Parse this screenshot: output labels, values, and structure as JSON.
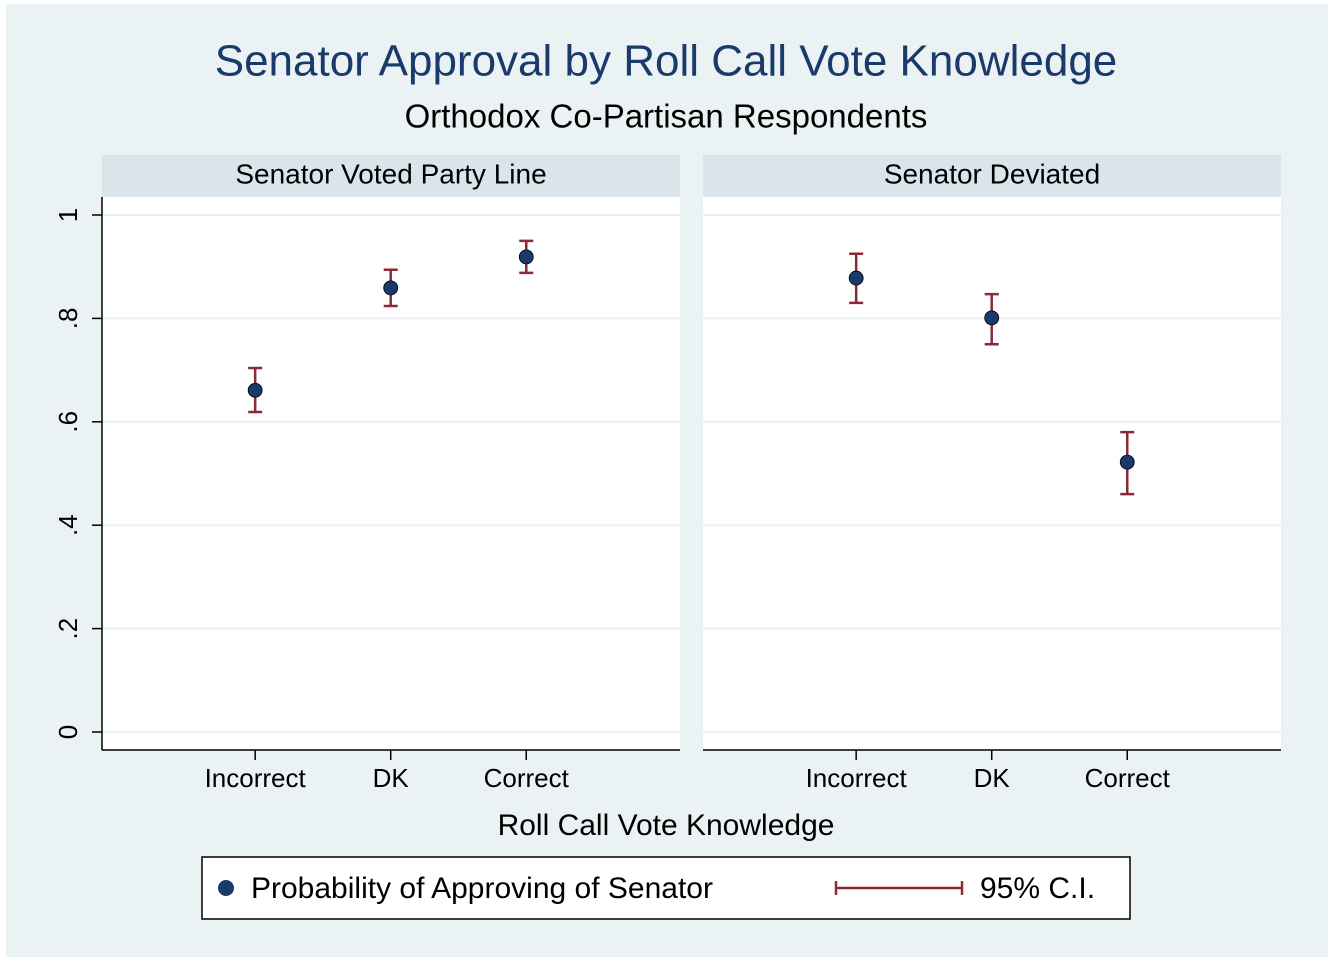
{
  "chart_data": {
    "type": "errorbar",
    "title": "Senator Approval by Roll Call Vote Knowledge",
    "subtitle": "Orthodox Co-Partisan Respondents",
    "xlabel": "Roll Call Vote Knowledge",
    "ylim": [
      0,
      1
    ],
    "yticks": [
      0,
      {
        "value": 0.2,
        "label": ".2"
      },
      {
        "value": 0.4,
        "label": ".4"
      },
      {
        "value": 0.6,
        "label": ".6"
      },
      {
        "value": 0.8,
        "label": ".8"
      },
      1
    ],
    "grid": true,
    "legend": "bottom",
    "series_name": "Probability of Approving of Senator",
    "color": "#1a3a6b",
    "ci_name": "95% C.I.",
    "ci_color": "#8b2a36",
    "panels": [
      {
        "title": "Senator Voted Party Line",
        "categories": [
          "Incorrect",
          "DK",
          "Correct"
        ],
        "values": [
          0.661,
          0.859,
          0.919
        ],
        "ci_low": [
          0.619,
          0.824,
          0.888
        ],
        "ci_high": [
          0.704,
          0.894,
          0.95
        ]
      },
      {
        "title": "Senator Deviated",
        "categories": [
          "Incorrect",
          "DK",
          "Correct"
        ],
        "values": [
          0.878,
          0.801,
          0.522
        ],
        "ci_low": [
          0.83,
          0.75,
          0.46
        ],
        "ci_high": [
          0.925,
          0.847,
          0.58
        ]
      }
    ]
  }
}
